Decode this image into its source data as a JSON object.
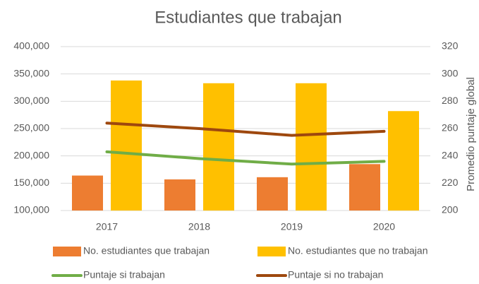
{
  "chart_data": {
    "type": "combo",
    "title": "Estudiantes que trabajan",
    "y2label": "Promedio puntaje global",
    "categories": [
      "2017",
      "2018",
      "2019",
      "2020"
    ],
    "series": [
      {
        "name": "No. estudiantes que trabajan",
        "type": "bar",
        "color": "#ed7d31",
        "values": [
          164000,
          157000,
          161000,
          185000
        ]
      },
      {
        "name": "No. estudiantes que no trabajan",
        "type": "bar",
        "color": "#ffc000",
        "values": [
          338000,
          333000,
          333000,
          282000
        ]
      },
      {
        "name": "Puntaje si trabajan",
        "type": "line",
        "axis": "y2",
        "color": "#70ad47",
        "values": [
          243,
          238,
          234,
          236
        ]
      },
      {
        "name": "Puntaje si no trabajan",
        "type": "line",
        "axis": "y2",
        "color": "#9e480e",
        "values": [
          264,
          260,
          255,
          258
        ]
      }
    ],
    "ylim": [
      100000,
      400000
    ],
    "yticks": [
      {
        "value": 100000,
        "label": "100,000"
      },
      {
        "value": 150000,
        "label": "150,000"
      },
      {
        "value": 200000,
        "label": "200,000"
      },
      {
        "value": 250000,
        "label": "250,000"
      },
      {
        "value": 300000,
        "label": "300,000"
      },
      {
        "value": 350000,
        "label": "350,000"
      },
      {
        "value": 400000,
        "label": "400,000"
      }
    ],
    "y2lim": [
      200,
      320
    ],
    "y2ticks": [
      200,
      220,
      240,
      260,
      280,
      300,
      320
    ],
    "grid": true,
    "legend": "bottom"
  }
}
